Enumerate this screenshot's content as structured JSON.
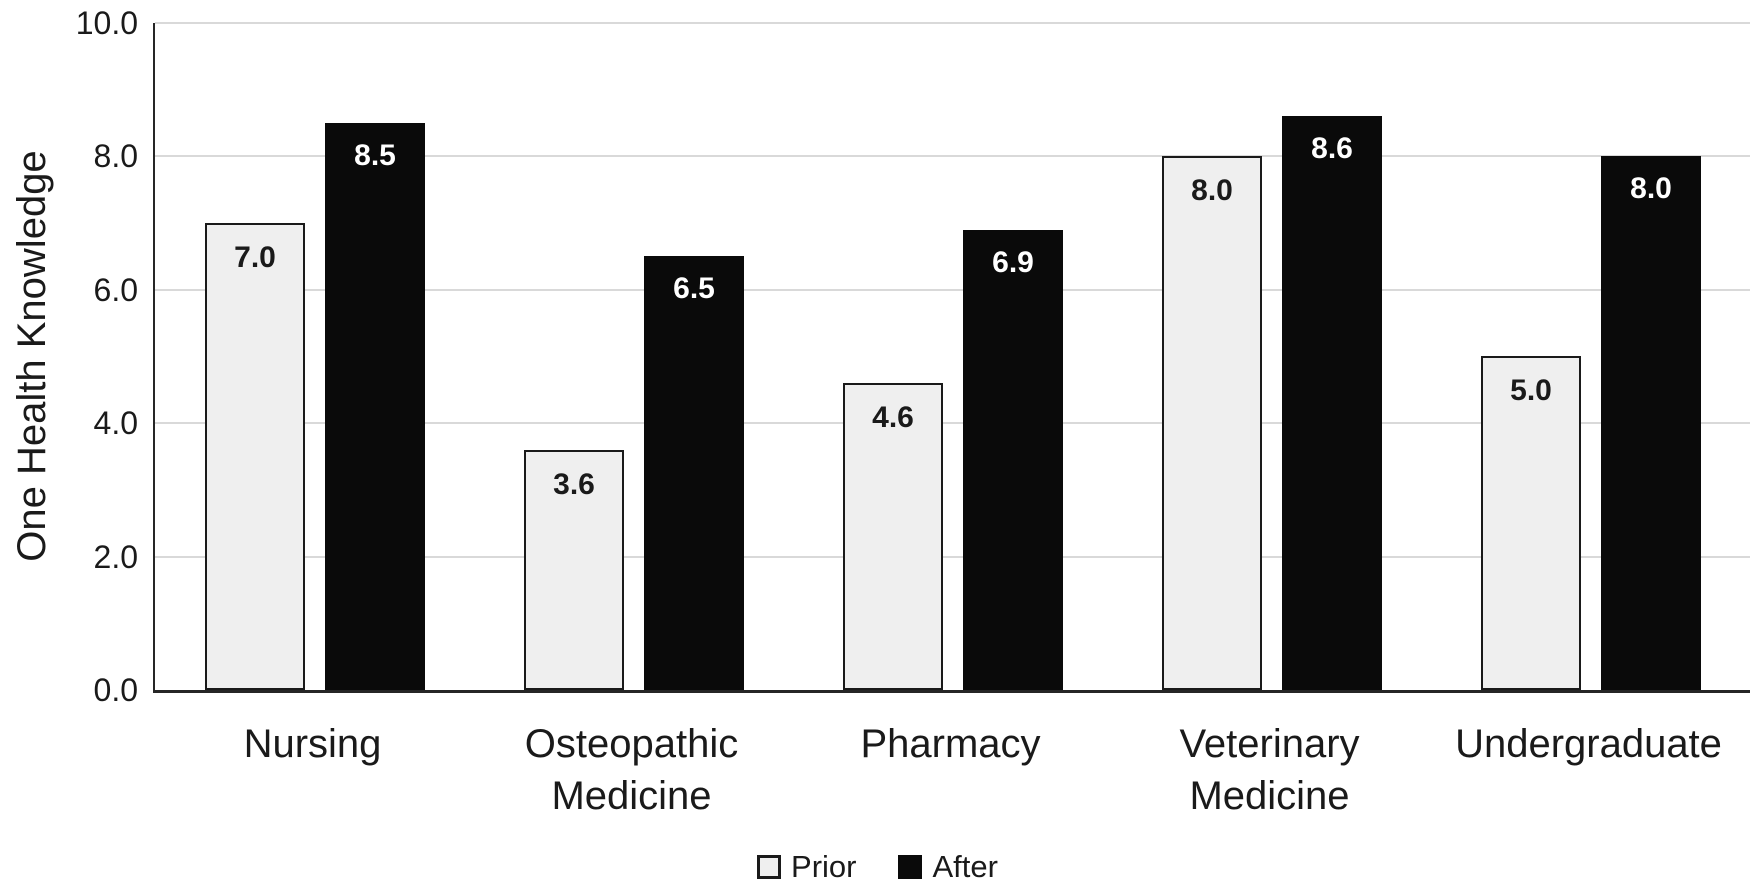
{
  "chart_data": {
    "type": "bar",
    "title": "",
    "xlabel": "",
    "ylabel": "One Health Knowledge",
    "categories": [
      "Nursing",
      "Osteopathic Medicine",
      "Pharmacy",
      "Veterinary Medicine",
      "Undergraduate"
    ],
    "series": [
      {
        "name": "Prior",
        "values": [
          7.0,
          3.6,
          4.6,
          8.0,
          5.0
        ]
      },
      {
        "name": "After",
        "values": [
          8.5,
          6.5,
          6.9,
          8.6,
          8.0
        ]
      }
    ],
    "bar_value_labels": {
      "Prior": [
        "7.0",
        "3.6",
        "4.6",
        "8.0",
        "5.0"
      ],
      "After": [
        "8.5",
        "6.5",
        "6.9",
        "8.6",
        "8.0"
      ]
    },
    "ylim": [
      0,
      10
    ],
    "ytick_labels": [
      "0.0",
      "2.0",
      "4.0",
      "6.0",
      "8.0",
      "10.0"
    ],
    "grid": true,
    "legend_position": "bottom",
    "colors": {
      "prior_fill": "#efefef",
      "prior_border": "#1a1a1a",
      "after_fill": "#0a0a0a",
      "prior_label_text": "#1a1a1a",
      "after_label_text": "#ffffff",
      "gridline": "#d9d9d9",
      "axis": "#262626",
      "background": "#ffffff"
    }
  }
}
